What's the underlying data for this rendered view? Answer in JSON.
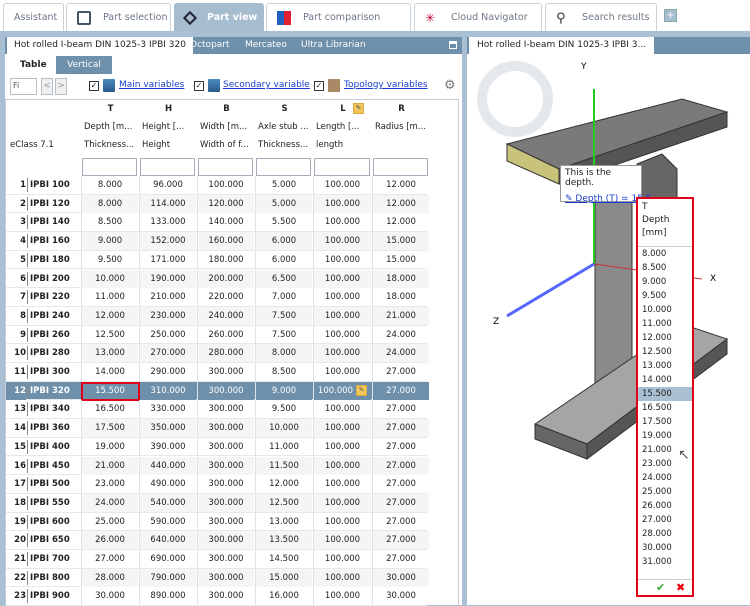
{
  "tabs": [
    {
      "label": "Assistant",
      "icon": ""
    },
    {
      "label": "Part selection",
      "icon": "part-selection-icon"
    },
    {
      "label": "Part view",
      "icon": "part-view-icon",
      "active": true
    },
    {
      "label": "Part comparison",
      "icon": "part-comparison-icon"
    },
    {
      "label": "Cloud Navigator",
      "icon": "cloud-navigator-icon"
    },
    {
      "label": "Search results",
      "icon": "search-icon"
    }
  ],
  "add_tab": "+",
  "left_panel": {
    "tabs": [
      "Hot rolled I-beam DIN 1025-3 IPBI 320",
      "Octopart",
      "Mercateo",
      "Ultra Librarian"
    ],
    "subtabs": [
      "Table",
      "Vertical"
    ],
    "filter_value": "Fi",
    "prev": "<",
    "next": ">",
    "checks": [
      "Main variables",
      "Secondary variable",
      "Topology variables"
    ],
    "corner_label": "eClass 7.1",
    "columns": [
      {
        "key": "T",
        "line1": "Depth [m...",
        "line2": "Thickness..."
      },
      {
        "key": "H",
        "line1": "Height [...",
        "line2": "Height"
      },
      {
        "key": "B",
        "line1": "Width [m...",
        "line2": "Width of f..."
      },
      {
        "key": "S",
        "line1": "Axle stub ...",
        "line2": "Thickness..."
      },
      {
        "key": "L",
        "line1": "Length [...",
        "line2": "length"
      },
      {
        "key": "R",
        "line1": "Radius [m...",
        "line2": ""
      }
    ],
    "rows": [
      [
        "1",
        "IPBI 100",
        "8.000",
        "96.000",
        "100.000",
        "5.000",
        "100.000",
        "12.000"
      ],
      [
        "2",
        "IPBI 120",
        "8.000",
        "114.000",
        "120.000",
        "5.000",
        "100.000",
        "12.000"
      ],
      [
        "3",
        "IPBI 140",
        "8.500",
        "133.000",
        "140.000",
        "5.500",
        "100.000",
        "12.000"
      ],
      [
        "4",
        "IPBI 160",
        "9.000",
        "152.000",
        "160.000",
        "6.000",
        "100.000",
        "15.000"
      ],
      [
        "5",
        "IPBI 180",
        "9.500",
        "171.000",
        "180.000",
        "6.000",
        "100.000",
        "15.000"
      ],
      [
        "6",
        "IPBI 200",
        "10.000",
        "190.000",
        "200.000",
        "6.500",
        "100.000",
        "18.000"
      ],
      [
        "7",
        "IPBI 220",
        "11.000",
        "210.000",
        "220.000",
        "7.000",
        "100.000",
        "18.000"
      ],
      [
        "8",
        "IPBI 240",
        "12.000",
        "230.000",
        "240.000",
        "7.500",
        "100.000",
        "21.000"
      ],
      [
        "9",
        "IPBI 260",
        "12.500",
        "250.000",
        "260.000",
        "7.500",
        "100.000",
        "24.000"
      ],
      [
        "10",
        "IPBI 280",
        "13.000",
        "270.000",
        "280.000",
        "8.000",
        "100.000",
        "24.000"
      ],
      [
        "11",
        "IPBI 300",
        "14.000",
        "290.000",
        "300.000",
        "8.500",
        "100.000",
        "27.000"
      ],
      [
        "12",
        "IPBI 320",
        "15.500",
        "310.000",
        "300.000",
        "9.000",
        "100.000",
        "27.000"
      ],
      [
        "13",
        "IPBI 340",
        "16.500",
        "330.000",
        "300.000",
        "9.500",
        "100.000",
        "27.000"
      ],
      [
        "14",
        "IPBI 360",
        "17.500",
        "350.000",
        "300.000",
        "10.000",
        "100.000",
        "27.000"
      ],
      [
        "15",
        "IPBI 400",
        "19.000",
        "390.000",
        "300.000",
        "11.000",
        "100.000",
        "27.000"
      ],
      [
        "16",
        "IPBI 450",
        "21.000",
        "440.000",
        "300.000",
        "11.500",
        "100.000",
        "27.000"
      ],
      [
        "17",
        "IPBI 500",
        "23.000",
        "490.000",
        "300.000",
        "12.000",
        "100.000",
        "27.000"
      ],
      [
        "18",
        "IPBI 550",
        "24.000",
        "540.000",
        "300.000",
        "12.500",
        "100.000",
        "27.000"
      ],
      [
        "19",
        "IPBI 600",
        "25.000",
        "590.000",
        "300.000",
        "13.000",
        "100.000",
        "27.000"
      ],
      [
        "20",
        "IPBI 650",
        "26.000",
        "640.000",
        "300.000",
        "13.500",
        "100.000",
        "27.000"
      ],
      [
        "21",
        "IPBI 700",
        "27.000",
        "690.000",
        "300.000",
        "14.500",
        "100.000",
        "27.000"
      ],
      [
        "22",
        "IPBI 800",
        "28.000",
        "790.000",
        "300.000",
        "15.000",
        "100.000",
        "30.000"
      ],
      [
        "23",
        "IPBI 900",
        "30.000",
        "890.000",
        "300.000",
        "16.000",
        "100.000",
        "30.000"
      ]
    ],
    "selected_row": "12"
  },
  "right_panel": {
    "tab": "Hot rolled I-beam DIN 1025-3 IPBI 3...",
    "axes": {
      "x": "X",
      "y": "Y",
      "z": "Z"
    },
    "tooltip": {
      "text": "This is the depth.",
      "link": "Depth (T) = 15.5"
    },
    "dropdown": {
      "header": [
        "T",
        "Depth",
        "[mm]"
      ],
      "options": [
        "8.000",
        "8.500",
        "9.000",
        "9.500",
        "10.000",
        "11.000",
        "12.000",
        "12.500",
        "13.000",
        "14.000",
        "15.500",
        "16.500",
        "17.500",
        "19.000",
        "21.000",
        "23.000",
        "24.000",
        "25.000",
        "26.000",
        "27.000",
        "28.000",
        "30.000",
        "31.000"
      ],
      "selected": "15.500",
      "ok": "✔",
      "cancel": "✖"
    }
  },
  "colors": {
    "accent": "#6e90ab",
    "highlight": "#e0001a"
  }
}
